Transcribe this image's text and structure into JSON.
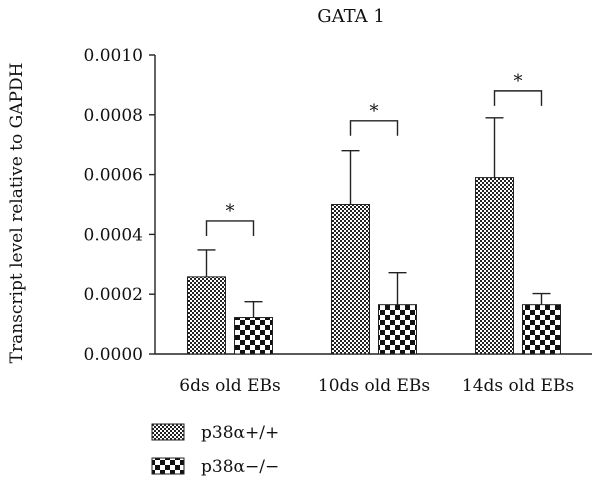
{
  "chart_data": {
    "type": "bar",
    "title": "GATA 1",
    "xlabel": "",
    "ylabel": "Transcript level relative to GAPDH",
    "categories": [
      "6ds old EBs",
      "10ds old EBs",
      "14ds old EBs"
    ],
    "ylim": [
      0,
      0.001
    ],
    "yticks": [
      0,
      0.0002,
      0.0004,
      0.0006,
      0.0008,
      0.001
    ],
    "ytick_labels": [
      "0.0000",
      "0.0002",
      "0.0004",
      "0.0006",
      "0.0008",
      "0.0010"
    ],
    "series": [
      {
        "name": "p38α+/+",
        "values": [
          0.000258,
          0.0005,
          0.00059
        ],
        "errors": [
          9e-05,
          0.00018,
          0.0002
        ],
        "pattern": "fine-checker"
      },
      {
        "name": "p38α−/−",
        "values": [
          0.000122,
          0.000165,
          0.000165
        ],
        "errors": [
          5.3e-05,
          0.000107,
          3.7e-05
        ],
        "pattern": "coarse-checker"
      }
    ],
    "significance": [
      {
        "category": "6ds old EBs",
        "label": "*",
        "level": 0.000445
      },
      {
        "category": "10ds old EBs",
        "label": "*",
        "level": 0.00078
      },
      {
        "category": "14ds old EBs",
        "label": "*",
        "level": 0.00088
      }
    ],
    "legend_position": "bottom-left",
    "grid": false
  }
}
